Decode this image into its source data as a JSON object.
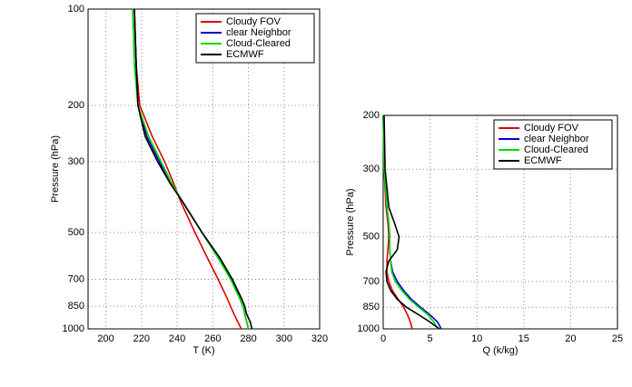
{
  "chart_data": [
    {
      "type": "line",
      "xlabel": "T (K)",
      "ylabel": "Pressure (hPa)",
      "y": [
        100,
        150,
        200,
        250,
        300,
        350,
        400,
        500,
        600,
        700,
        800,
        850,
        900,
        950,
        1000
      ],
      "series": [
        {
          "name": "Cloudy FOV",
          "color": "#e00000",
          "values": [
            216,
            217,
            219,
            226,
            233,
            238,
            242,
            250,
            257,
            263,
            268,
            270,
            272,
            274,
            276
          ]
        },
        {
          "name": "clear Neighbor",
          "color": "#0000cc",
          "values": [
            216,
            217,
            218,
            223,
            230,
            236,
            243,
            254,
            263,
            271,
            275,
            277,
            278,
            279,
            280
          ]
        },
        {
          "name": "Cloud-Cleared",
          "color": "#00dd00",
          "values": [
            215,
            216,
            218,
            224,
            231,
            237,
            243,
            254,
            263,
            270,
            275,
            277,
            278,
            279,
            280
          ]
        },
        {
          "name": "ECMWF",
          "color": "#000000",
          "values": [
            216,
            217,
            218,
            222,
            229,
            236,
            243,
            254,
            264,
            271,
            276,
            278,
            279,
            281,
            282
          ]
        }
      ],
      "xlim": [
        190,
        320
      ],
      "xticks": [
        200,
        220,
        240,
        260,
        280,
        300,
        320
      ],
      "ylim": [
        100,
        1000
      ],
      "yticks": [
        100,
        200,
        300,
        500,
        700,
        850,
        1000
      ],
      "ylog": true,
      "yreversed": true,
      "grid": true,
      "legend": "upper right"
    },
    {
      "type": "line",
      "xlabel": "Q (k/kg)",
      "ylabel": "Pressure (hPa)",
      "y": [
        200,
        300,
        400,
        450,
        500,
        550,
        600,
        650,
        700,
        750,
        800,
        850,
        900,
        950,
        1000
      ],
      "series": [
        {
          "name": "Cloudy FOV",
          "color": "#e00000",
          "values": [
            0,
            0.1,
            0.3,
            0.5,
            0.6,
            0.5,
            0.4,
            0.4,
            0.6,
            1,
            1.6,
            2.2,
            2.6,
            2.9,
            3.1
          ]
        },
        {
          "name": "clear Neighbor",
          "color": "#0000cc",
          "values": [
            0,
            0.1,
            0.4,
            0.6,
            0.7,
            0.7,
            0.8,
            1.0,
            1.5,
            2.2,
            3,
            4,
            5,
            5.8,
            6.2
          ]
        },
        {
          "name": "Cloud-Cleared",
          "color": "#00dd00",
          "values": [
            0,
            0.1,
            0.4,
            0.6,
            0.7,
            0.7,
            0.8,
            0.9,
            1.3,
            2,
            2.8,
            3.8,
            4.8,
            5.4,
            5.8
          ]
        },
        {
          "name": "ECMWF",
          "color": "#000000",
          "values": [
            0.1,
            0.2,
            0.6,
            1.2,
            1.7,
            1.5,
            0.6,
            0.3,
            0.4,
            0.8,
            1.5,
            2.5,
            3.8,
            5,
            6
          ]
        }
      ],
      "xlim": [
        0,
        25
      ],
      "xticks": [
        0,
        5,
        10,
        15,
        20,
        25
      ],
      "ylim": [
        200,
        1000
      ],
      "yticks": [
        200,
        300,
        500,
        700,
        850,
        1000
      ],
      "ylog": true,
      "yreversed": true,
      "grid": true,
      "legend": "upper right"
    }
  ]
}
